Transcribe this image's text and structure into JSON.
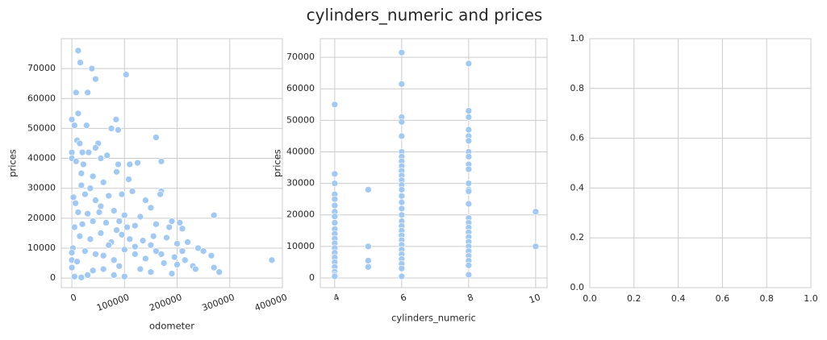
{
  "title": "cylinders_numeric and prices",
  "chart_data": [
    {
      "type": "scatter",
      "xlabel": "odometer",
      "ylabel": "prices",
      "color": "#a1c9f4",
      "grid": true,
      "xtick_rotation": 20,
      "xlim": [
        -20000,
        400000
      ],
      "ylim": [
        -3200,
        80000
      ],
      "xticks": [
        0,
        100000,
        200000,
        300000,
        400000
      ],
      "yticks": [
        0,
        10000,
        20000,
        30000,
        40000,
        50000,
        60000,
        70000
      ],
      "x": [
        12000,
        16000,
        38000,
        45000,
        103000,
        8000,
        30000,
        12000,
        0,
        5000,
        28000,
        84000,
        75000,
        88000,
        10000,
        15000,
        50000,
        160000,
        0,
        20000,
        32000,
        45000,
        67000,
        0,
        8000,
        22000,
        55000,
        110000,
        125000,
        170000,
        88000,
        18000,
        40000,
        60000,
        85000,
        108000,
        3000,
        7000,
        25000,
        45000,
        70000,
        95000,
        115000,
        140000,
        170000,
        168000,
        12000,
        30000,
        52000,
        80000,
        100000,
        130000,
        150000,
        190000,
        205000,
        270000,
        5000,
        20000,
        40000,
        65000,
        90000,
        120000,
        160000,
        185000,
        210000,
        2000,
        15000,
        35000,
        55000,
        75000,
        95000,
        110000,
        135000,
        155000,
        180000,
        200000,
        220000,
        240000,
        250000,
        265000,
        270000,
        280000,
        380000,
        0,
        0,
        10000,
        25000,
        45000,
        60000,
        80000,
        100000,
        120000,
        140000,
        160000,
        175000,
        195000,
        215000,
        230000,
        235000,
        40000,
        80000,
        100000,
        5000,
        18000,
        30000,
        60000,
        150000,
        190000,
        0,
        90000,
        130000,
        200000,
        120000,
        70000,
        170000,
        210000,
        150000,
        85000,
        105000,
        55000,
        35000,
        18000
      ],
      "values": [
        76000,
        72000,
        70000,
        66500,
        68000,
        62000,
        62000,
        55000,
        53000,
        51000,
        51000,
        53000,
        50000,
        49500,
        46000,
        45000,
        45000,
        47000,
        42000,
        42000,
        42000,
        43500,
        41000,
        40000,
        39000,
        38000,
        40000,
        38000,
        38500,
        39000,
        38000,
        35000,
        34000,
        32000,
        35500,
        33000,
        27000,
        25000,
        28000,
        26000,
        27500,
        28000,
        29000,
        26000,
        29000,
        28000,
        22000,
        21500,
        22000,
        22500,
        21000,
        20500,
        23500,
        19000,
        18500,
        21000,
        17000,
        18000,
        19000,
        18500,
        19000,
        17500,
        18000,
        17000,
        16500,
        10000,
        14000,
        13000,
        15000,
        12000,
        14500,
        13000,
        12500,
        14000,
        13500,
        11500,
        12000,
        10000,
        9000,
        7500,
        3500,
        2000,
        6000,
        8500,
        6000,
        5500,
        9000,
        8000,
        7500,
        6000,
        9500,
        8000,
        6500,
        9000,
        5000,
        7000,
        6000,
        4000,
        3000,
        2500,
        1000,
        500,
        500,
        200,
        1000,
        3000,
        2000,
        1500,
        3500,
        4000,
        3000,
        4500,
        10500,
        11000,
        8000,
        9000,
        11000,
        16000,
        17000,
        24000,
        30000,
        31000
      ]
    },
    {
      "type": "scatter",
      "xlabel": "cylinders_numeric",
      "ylabel": "prices",
      "color": "#a1c9f4",
      "grid": true,
      "xtick_rotation": 20,
      "xlim": [
        3.57,
        10.34
      ],
      "ylim": [
        -3070,
        75900
      ],
      "xticks": [
        4,
        6,
        8,
        10
      ],
      "yticks": [
        0,
        10000,
        20000,
        30000,
        40000,
        50000,
        60000,
        70000
      ],
      "x": [
        4,
        4,
        4,
        4,
        4,
        4,
        4,
        4,
        4,
        4,
        4,
        4,
        4,
        4,
        4,
        4,
        4,
        4,
        4,
        4,
        4,
        5,
        5,
        5,
        5,
        6,
        6,
        6,
        6,
        6,
        6,
        6,
        6,
        6,
        6,
        6,
        6,
        6,
        6,
        6,
        6,
        6,
        6,
        6,
        6,
        6,
        6,
        6,
        6,
        6,
        6,
        6,
        6,
        6,
        6,
        8,
        8,
        8,
        8,
        8,
        8,
        8,
        8,
        8,
        8,
        8,
        8,
        8,
        8,
        8,
        8,
        8,
        8,
        8,
        8,
        8,
        8,
        8,
        8,
        8,
        8,
        10,
        10
      ],
      "values": [
        55000,
        33000,
        30000,
        26500,
        25000,
        23000,
        21000,
        19500,
        17500,
        15500,
        14000,
        12500,
        11000,
        9500,
        8000,
        6500,
        5000,
        3500,
        2000,
        1000,
        500,
        28000,
        10000,
        5500,
        3500,
        71500,
        61500,
        51000,
        49500,
        45000,
        40000,
        38500,
        37000,
        35500,
        34000,
        32500,
        31000,
        29500,
        28000,
        26000,
        24000,
        22000,
        20000,
        18000,
        16500,
        15000,
        13500,
        12000,
        10500,
        9000,
        7500,
        6000,
        4500,
        3000,
        500,
        68000,
        53000,
        51000,
        47000,
        45000,
        43500,
        40000,
        38500,
        36000,
        34500,
        30000,
        28000,
        27500,
        23500,
        19000,
        17500,
        16000,
        14500,
        13000,
        11500,
        10000,
        8500,
        7000,
        5500,
        4000,
        1000,
        21000,
        10000
      ]
    },
    {
      "type": "axes",
      "grid": true,
      "xlim": [
        0,
        1
      ],
      "ylim": [
        0,
        1
      ],
      "xticks": [
        {
          "value": 0,
          "label": "0.0"
        },
        {
          "value": 0.2,
          "label": "0.2"
        },
        {
          "value": 0.4,
          "label": "0.4"
        },
        {
          "value": 0.6,
          "label": "0.6"
        },
        {
          "value": 0.8,
          "label": "0.8"
        },
        {
          "value": 1,
          "label": "1.0"
        }
      ],
      "yticks": [
        {
          "value": 0,
          "label": "0.0"
        },
        {
          "value": 0.2,
          "label": "0.2"
        },
        {
          "value": 0.4,
          "label": "0.4"
        },
        {
          "value": 0.6,
          "label": "0.6"
        },
        {
          "value": 0.8,
          "label": "0.8"
        },
        {
          "value": 1,
          "label": "1.0"
        }
      ]
    }
  ]
}
